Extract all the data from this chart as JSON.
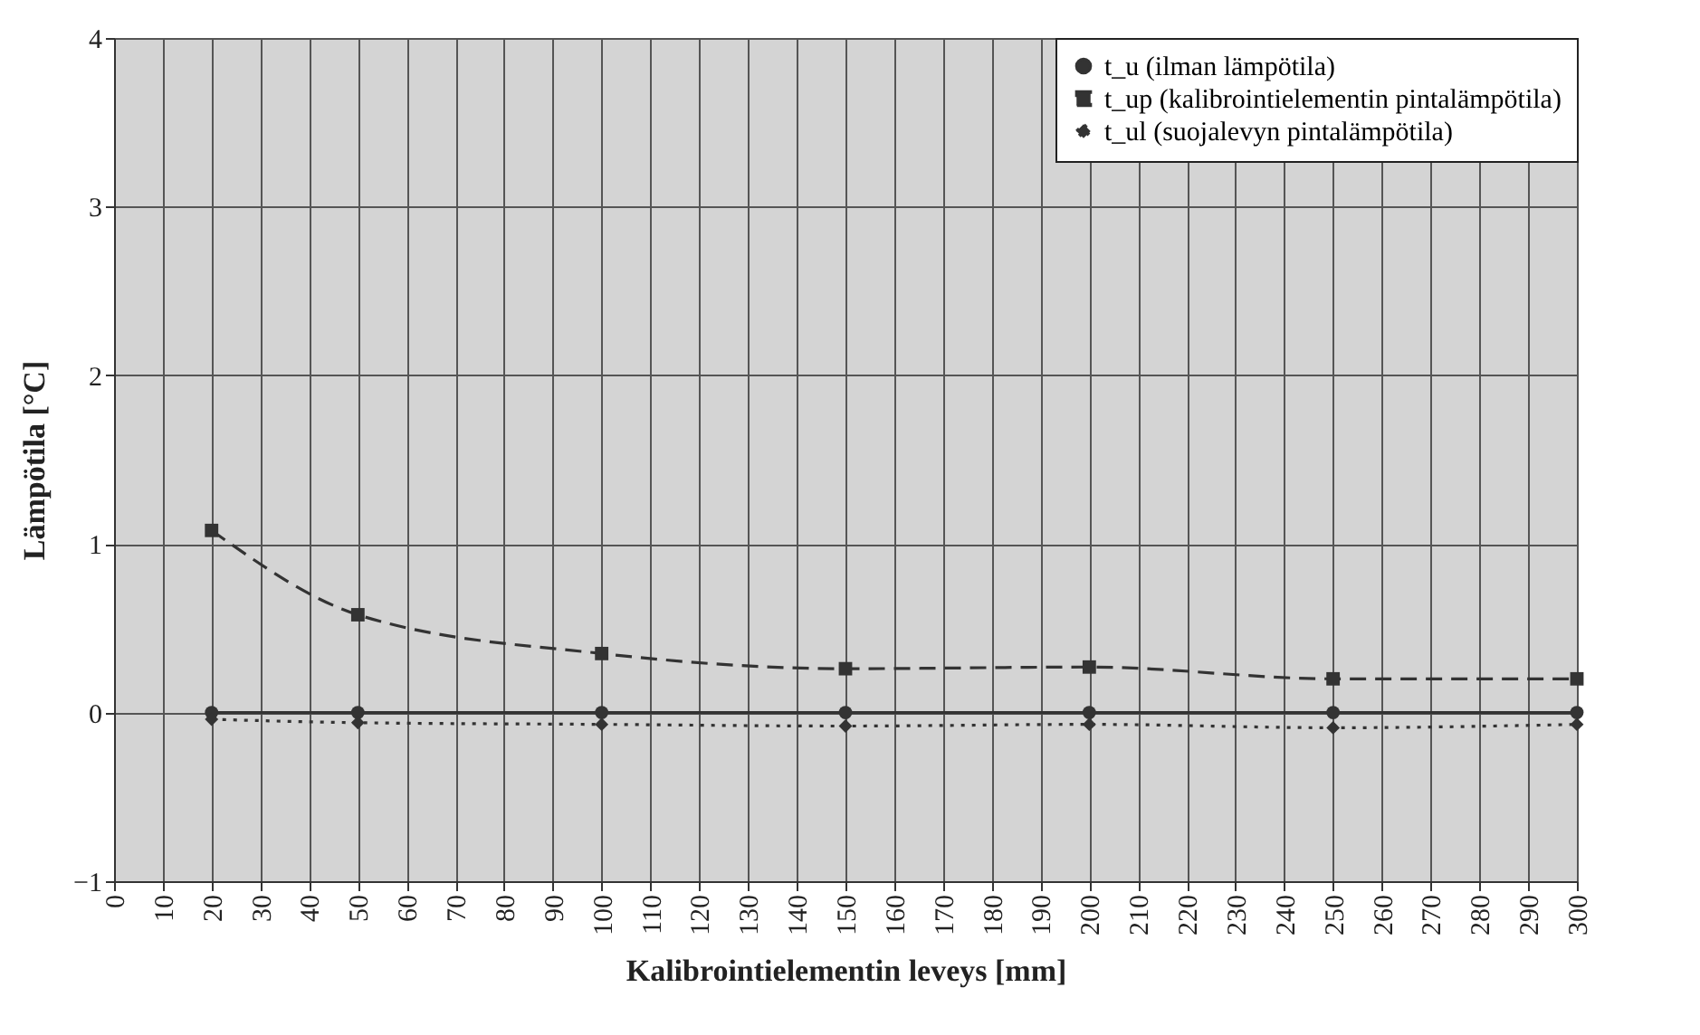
{
  "chart_data": {
    "type": "line",
    "xlabel": "Kalibrointielementin leveys [mm]",
    "ylabel": "Lämpötila [°C]",
    "x": [
      20,
      50,
      100,
      150,
      200,
      250,
      300
    ],
    "series": [
      {
        "name": "t_u (ilman lämpötila)",
        "color": "#333333",
        "marker": "circle",
        "line_style": "solid",
        "values": [
          0,
          0,
          0,
          0,
          0,
          0,
          0
        ]
      },
      {
        "name": "t_up (kalibrointielementin pintalämpötila)",
        "color": "#333333",
        "marker": "square",
        "line_style": "dashed",
        "values": [
          1.08,
          0.58,
          0.35,
          0.26,
          0.27,
          0.2,
          0.2
        ]
      },
      {
        "name": "t_ul (suojalevyn pintalämpötila)",
        "color": "#333333",
        "marker": "diamond",
        "line_style": "dotted",
        "values": [
          -0.04,
          -0.06,
          -0.07,
          -0.08,
          -0.07,
          -0.09,
          -0.07
        ]
      }
    ],
    "xlim": [
      0,
      300
    ],
    "xticks": [
      0,
      10,
      20,
      30,
      40,
      50,
      60,
      70,
      80,
      90,
      100,
      110,
      120,
      130,
      140,
      150,
      160,
      170,
      180,
      190,
      200,
      210,
      220,
      230,
      240,
      250,
      260,
      270,
      280,
      290,
      300
    ],
    "ylim": [
      -1,
      4
    ],
    "yticks": [
      -1,
      0,
      1,
      2,
      3,
      4
    ],
    "grid": true,
    "legend": "top right"
  }
}
